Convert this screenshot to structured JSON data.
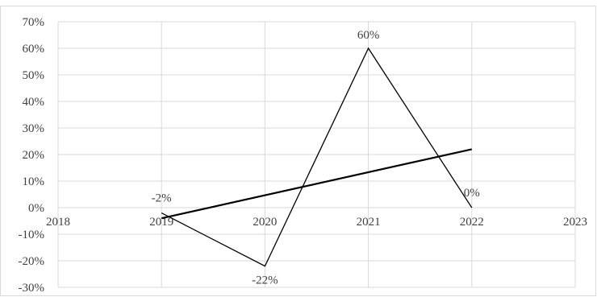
{
  "chart_data": {
    "type": "scatter",
    "title": "",
    "xlabel": "",
    "ylabel": "",
    "xlim": [
      2018,
      2023
    ],
    "ylim": [
      -30,
      70
    ],
    "x_ticks": [
      "2018",
      "2019",
      "2020",
      "2021",
      "2022",
      "2023"
    ],
    "y_ticks": [
      "70%",
      "60%",
      "50%",
      "40%",
      "30%",
      "20%",
      "10%",
      "0%",
      "-10%",
      "-20%",
      "-30%"
    ],
    "grid": true,
    "legend": "none",
    "series": [
      {
        "style": "line",
        "x": [
          2019,
          2020,
          2021,
          2022
        ],
        "y": [
          -2,
          -22,
          60,
          0
        ],
        "labels": [
          "-2%",
          "-22%",
          "60%",
          "0%"
        ],
        "color": "#000000"
      }
    ],
    "trendline": {
      "type": "linear",
      "x": [
        2019,
        2022
      ],
      "y": [
        -4,
        22
      ],
      "color": "#000000"
    }
  }
}
